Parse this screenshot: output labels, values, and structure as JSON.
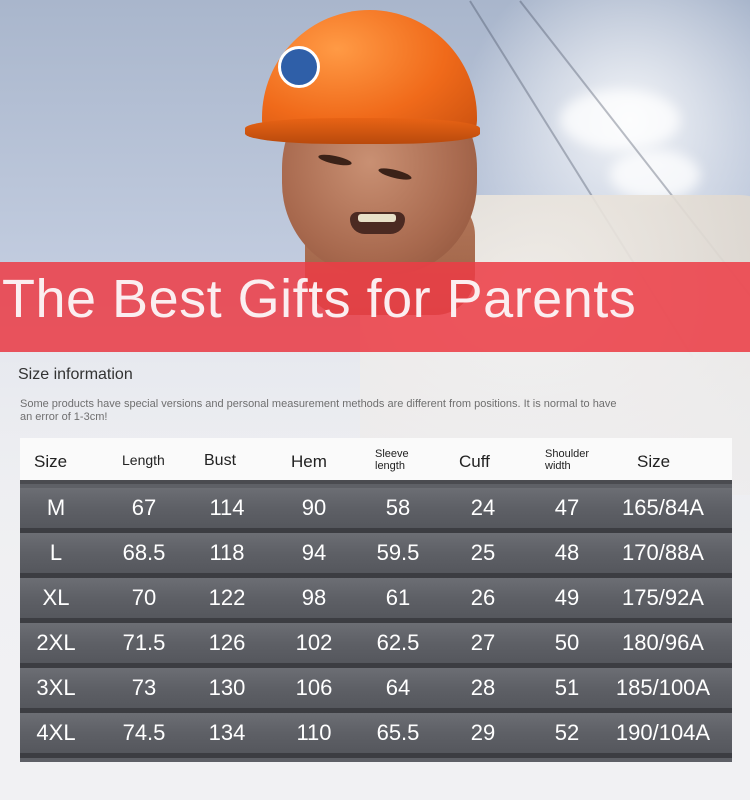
{
  "banner": {
    "title": "The Best Gifts for Parents"
  },
  "size_info": {
    "title": "Size information",
    "note": "Some products have special versions and personal measurement methods are different from positions. It is normal to have an error of 1-3cm!"
  },
  "table": {
    "headers": [
      "Size",
      "Length",
      "Bust",
      "Hem",
      "Sleeve length",
      "Cuff",
      "Shoulder width",
      "Size"
    ],
    "rows": [
      [
        "M",
        "67",
        "114",
        "90",
        "58",
        "24",
        "47",
        "165/84A"
      ],
      [
        "L",
        "68.5",
        "118",
        "94",
        "59.5",
        "25",
        "48",
        "170/88A"
      ],
      [
        "XL",
        "70",
        "122",
        "98",
        "61",
        "26",
        "49",
        "175/92A"
      ],
      [
        "2XL",
        "71.5",
        "126",
        "102",
        "62.5",
        "27",
        "50",
        "180/96A"
      ],
      [
        "3XL",
        "73",
        "130",
        "106",
        "64",
        "28",
        "51",
        "185/100A"
      ],
      [
        "4XL",
        "74.5",
        "134",
        "110",
        "65.5",
        "29",
        "52",
        "190/104A"
      ]
    ]
  },
  "colors": {
    "banner": "#ec3c46",
    "table_row": "#5e6066",
    "helmet": "#f06a1a"
  }
}
